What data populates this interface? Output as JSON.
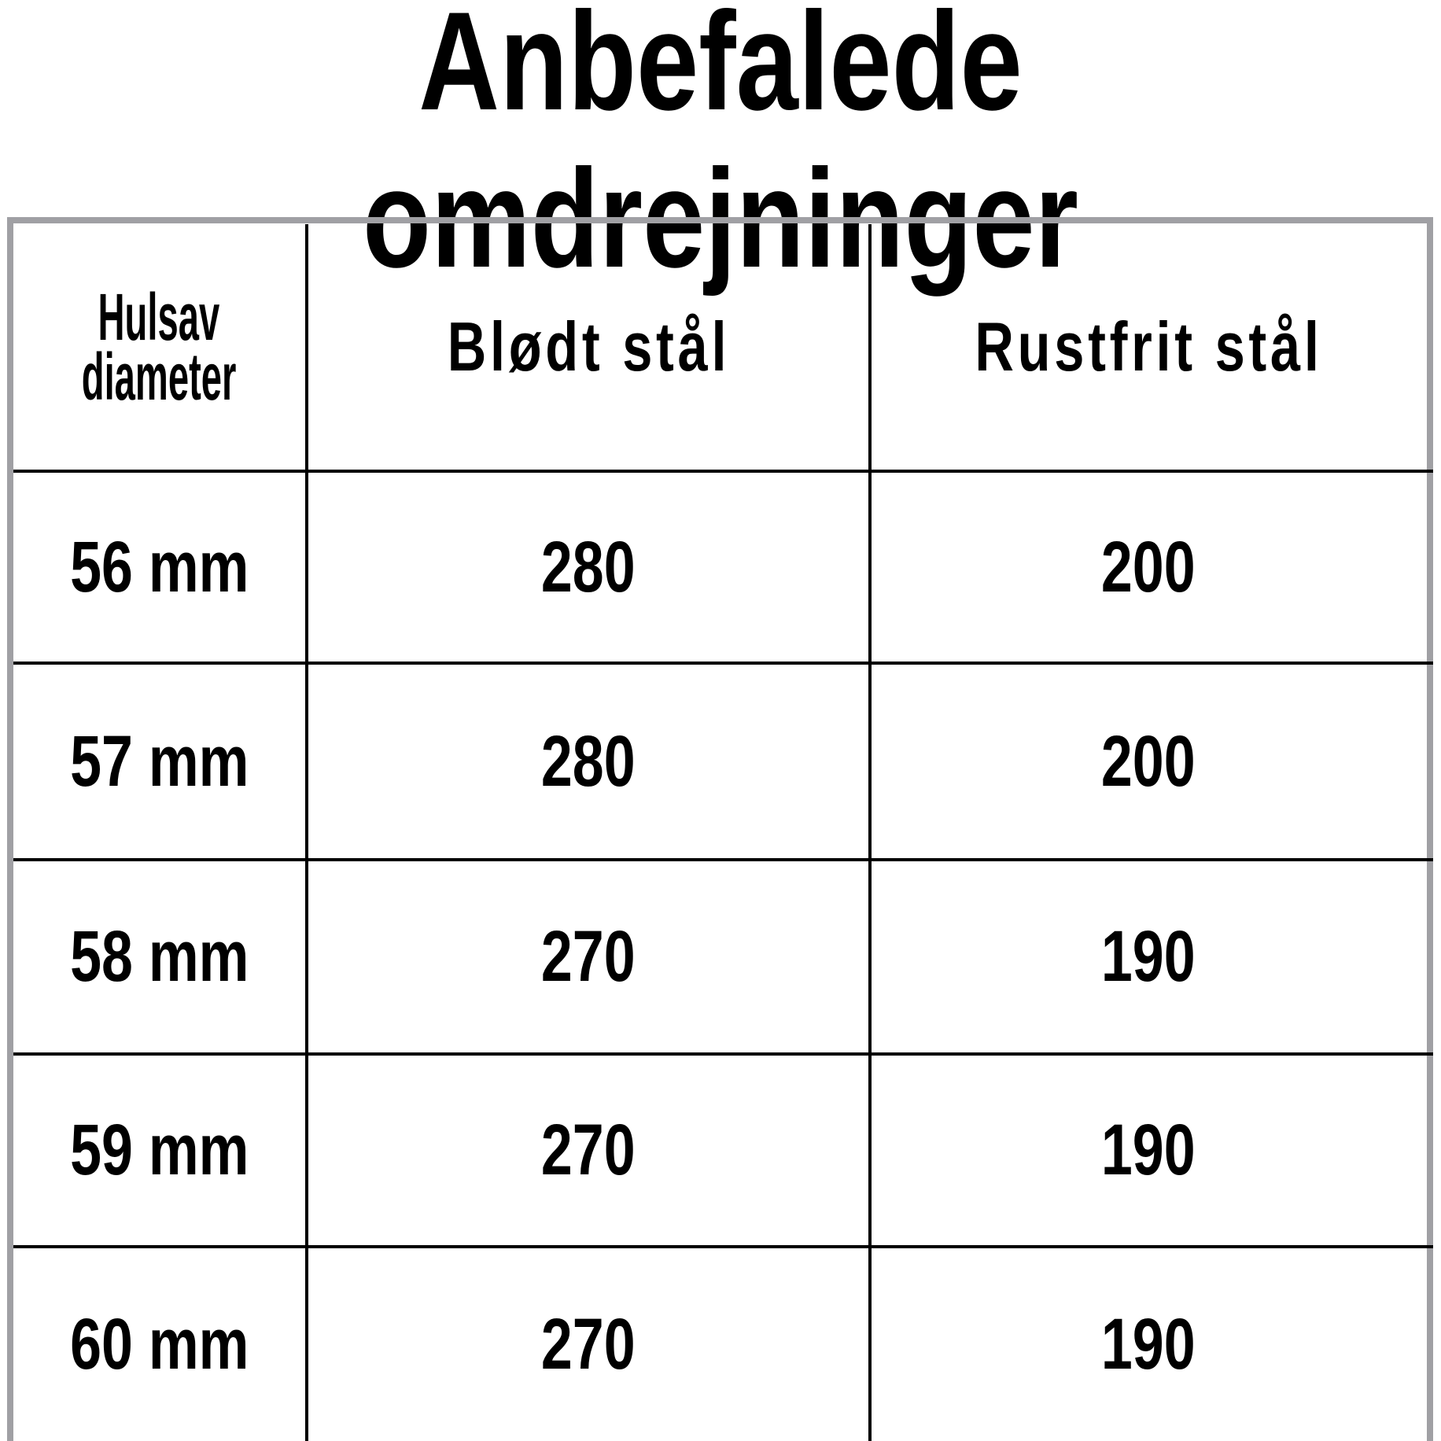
{
  "title": "Anbefalede omdrejninger",
  "table": {
    "headers": [
      "Hulsav diameter",
      "Blødt stål",
      "Rustfrit stål"
    ],
    "header_first_lines": [
      "Hulsav",
      "diameter"
    ],
    "rows": [
      [
        "56 mm",
        "280",
        "200"
      ],
      [
        "57 mm",
        "280",
        "200"
      ],
      [
        "58 mm",
        "270",
        "190"
      ],
      [
        "59 mm",
        "270",
        "190"
      ],
      [
        "60 mm",
        "270",
        "190"
      ]
    ]
  },
  "colors": {
    "frame": "#a0a0a4",
    "grid": "#000000"
  }
}
